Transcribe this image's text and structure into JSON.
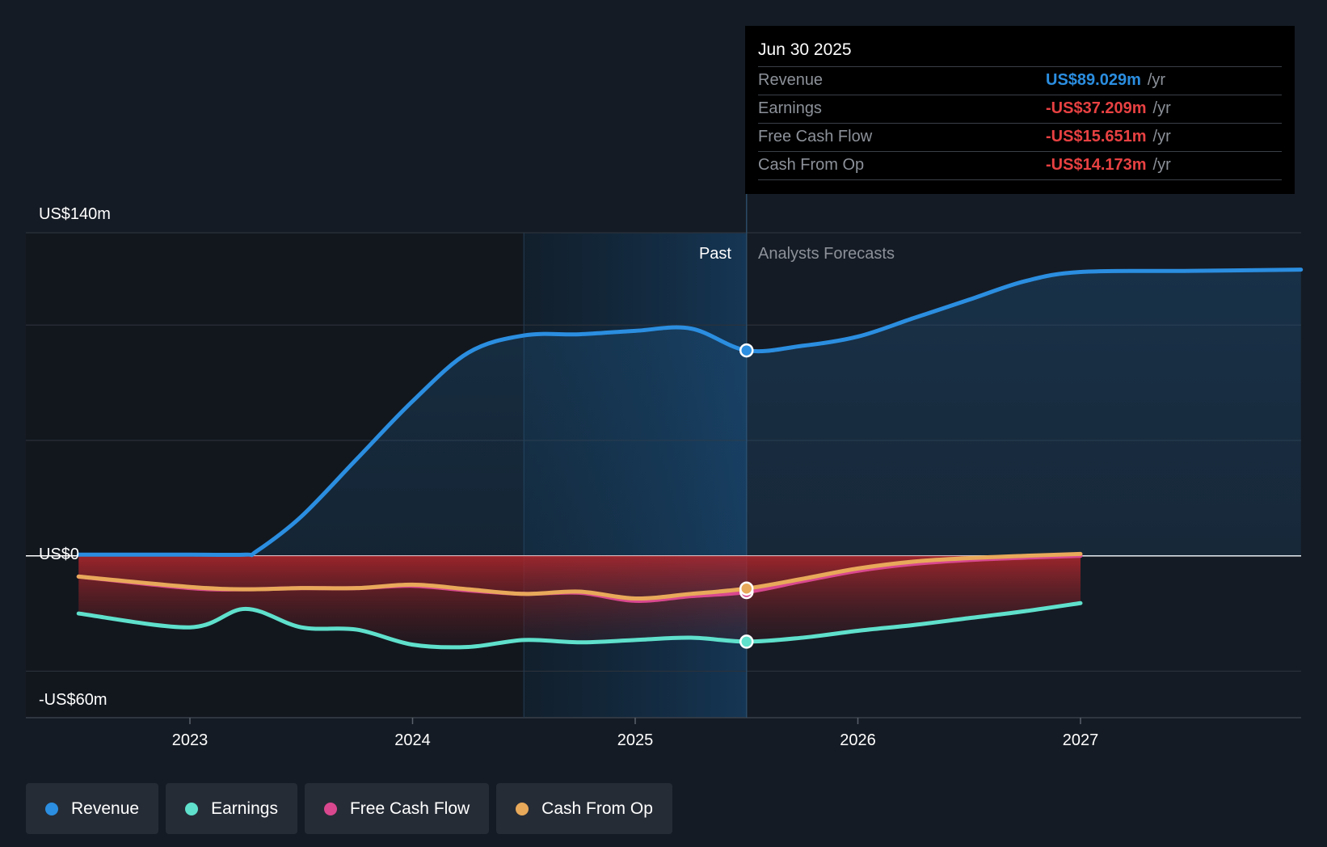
{
  "chart_data": {
    "type": "line",
    "title": "",
    "y_axis_labels": [
      "US$140m",
      "US$0",
      "-US$60m"
    ],
    "ylim": [
      -60,
      140
    ],
    "x_ticks": [
      "2023",
      "2024",
      "2025",
      "2026",
      "2027"
    ],
    "past_label": "Past",
    "forecast_label": "Analysts Forecasts",
    "series": [
      {
        "name": "Revenue",
        "color": "#2b8ee0",
        "x": [
          2022.5,
          2023.0,
          2023.25,
          2023.3,
          2023.5,
          2023.75,
          2024.0,
          2024.25,
          2024.5,
          2024.75,
          2025.0,
          2025.25,
          2025.5,
          2025.75,
          2026.0,
          2026.25,
          2026.5,
          2026.75,
          2027.0,
          2027.5,
          2027.99
        ],
        "y": [
          0.5,
          0.5,
          0.5,
          2,
          17,
          42,
          67,
          88,
          95.5,
          96,
          97.5,
          98.5,
          89.0,
          91,
          95,
          103,
          111,
          119,
          123,
          123.5,
          124
        ]
      },
      {
        "name": "Earnings",
        "color": "#5fe0cc",
        "x": [
          2022.5,
          2023.0,
          2023.25,
          2023.5,
          2023.75,
          2024.0,
          2024.25,
          2024.5,
          2024.75,
          2025.0,
          2025.25,
          2025.5,
          2025.75,
          2026.0,
          2026.25,
          2026.5,
          2026.75,
          2027.0
        ],
        "y": [
          -25,
          -31,
          -23,
          -31,
          -32,
          -38.5,
          -39.5,
          -36.5,
          -37.5,
          -36.5,
          -35.5,
          -37.2,
          -35.5,
          -32.5,
          -30,
          -27,
          -24,
          -20.5
        ]
      },
      {
        "name": "Free Cash Flow",
        "color": "#d9488f",
        "x": [
          2022.5,
          2023.0,
          2023.25,
          2023.5,
          2023.75,
          2024.0,
          2024.25,
          2024.5,
          2024.75,
          2025.0,
          2025.25,
          2025.5,
          2025.75,
          2026.0,
          2026.25,
          2026.5,
          2026.75,
          2027.0
        ],
        "y": [
          -9,
          -14,
          -14.5,
          -14,
          -14,
          -13,
          -15,
          -16.5,
          -16,
          -19.5,
          -17.5,
          -15.7,
          -11,
          -6.5,
          -3.5,
          -1.8,
          -0.8,
          0
        ]
      },
      {
        "name": "Cash From Op",
        "color": "#e8a95a",
        "x": [
          2022.5,
          2023.0,
          2023.25,
          2023.5,
          2023.75,
          2024.0,
          2024.25,
          2024.5,
          2024.75,
          2025.0,
          2025.25,
          2025.5,
          2025.75,
          2026.0,
          2026.25,
          2026.5,
          2026.75,
          2027.0
        ],
        "y": [
          -9,
          -13.5,
          -14.5,
          -14,
          -14,
          -12.5,
          -14.5,
          -16.5,
          -15.5,
          -18.5,
          -16.5,
          -14.2,
          -10,
          -5.5,
          -2.5,
          -1,
          0,
          0.8
        ]
      }
    ],
    "highlight_x": 2025.5
  },
  "tooltip": {
    "date": "Jun 30 2025",
    "rows": [
      {
        "label": "Revenue",
        "value": "US$89.029m",
        "unit": "/yr",
        "color": "#2b8ee0"
      },
      {
        "label": "Earnings",
        "value": "-US$37.209m",
        "unit": "/yr",
        "color": "#e84142"
      },
      {
        "label": "Free Cash Flow",
        "value": "-US$15.651m",
        "unit": "/yr",
        "color": "#e84142"
      },
      {
        "label": "Cash From Op",
        "value": "-US$14.173m",
        "unit": "/yr",
        "color": "#e84142"
      }
    ]
  },
  "legend": [
    {
      "label": "Revenue",
      "color": "#2b8ee0"
    },
    {
      "label": "Earnings",
      "color": "#5fe0cc"
    },
    {
      "label": "Free Cash Flow",
      "color": "#d9488f"
    },
    {
      "label": "Cash From Op",
      "color": "#e8a95a"
    }
  ]
}
